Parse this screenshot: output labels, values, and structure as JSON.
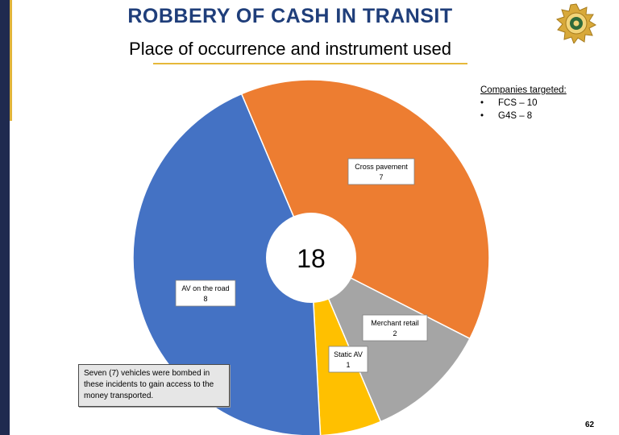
{
  "header": {
    "title": "ROBBERY OF CASH IN TRANSIT",
    "subtitle": "Place of occurrence and instrument used"
  },
  "companies": {
    "heading": "Companies targeted:",
    "items": [
      "FCS – 10",
      "G4S – 8"
    ]
  },
  "note": "Seven (7) vehicles were bombed in these incidents to gain access to the money transported.",
  "page_number": "62",
  "chart_data": {
    "type": "pie",
    "style": "donut",
    "center_label": "18",
    "slices": [
      {
        "label": "Cross pavement",
        "value": 7,
        "color": "#ED7D31"
      },
      {
        "label": "Merchant retail",
        "value": 2,
        "color": "#A5A5A5"
      },
      {
        "label": "Static AV",
        "value": 1,
        "color": "#FFC000"
      },
      {
        "label": "AV on the road",
        "value": 8,
        "color": "#4472C4"
      }
    ]
  }
}
